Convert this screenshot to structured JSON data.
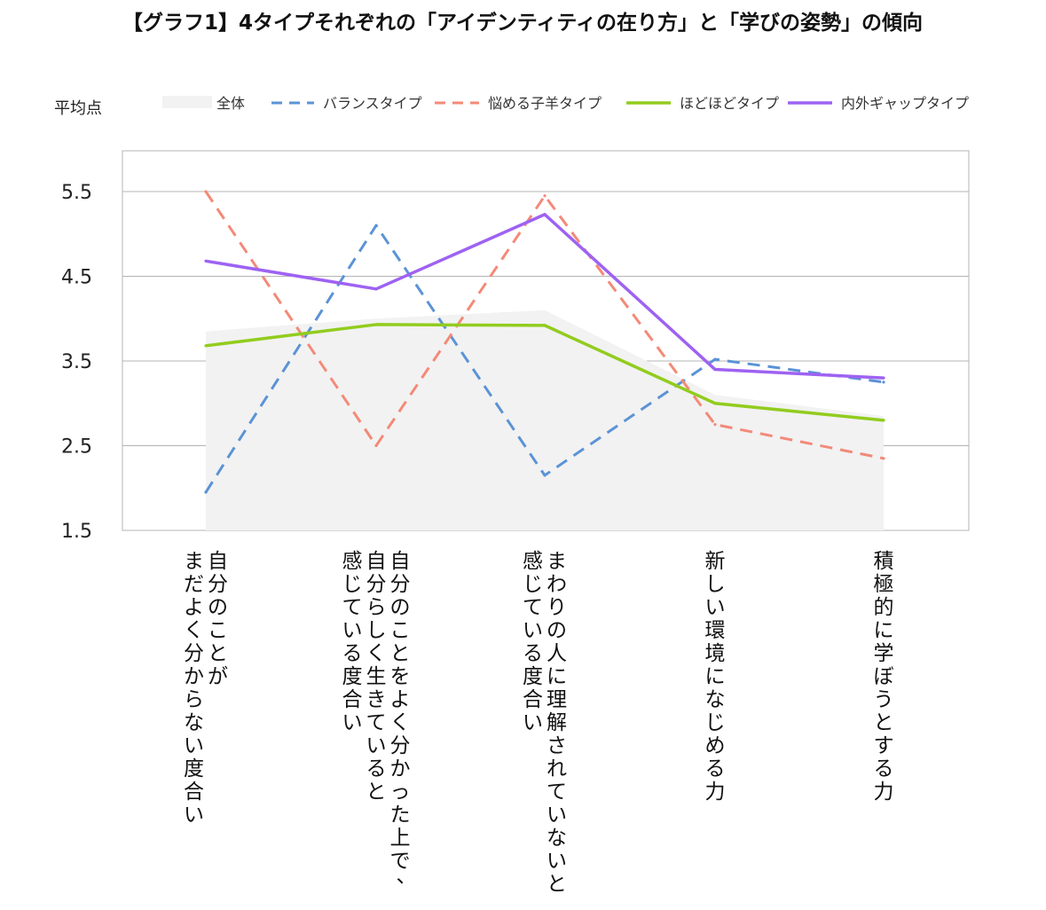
{
  "chart_data": {
    "type": "line",
    "title": "【グラフ1】4タイプそれぞれの「アイデンティティの在り方」と「学びの姿勢」の傾向",
    "ylabel": "平均点",
    "xlabel": "",
    "ylim": [
      1.5,
      6.0
    ],
    "yticks": [
      1.5,
      2.5,
      3.5,
      4.5,
      5.5
    ],
    "ytick_labels": [
      "1.5",
      "2.5",
      "3.5",
      "4.5",
      "5.5"
    ],
    "grid": true,
    "legend_position": "top",
    "categories": [
      [
        "自分のことが",
        "まだよく分からない度合い"
      ],
      [
        "自分のことをよく分かった上で、",
        "自分らしく生きていると",
        "感じている度合い"
      ],
      [
        "まわりの人に理解されていないと",
        "感じている度合い"
      ],
      [
        "新しい環境になじめる力"
      ],
      [
        "積極的に学ぼうとする力"
      ]
    ],
    "series": [
      {
        "name": "全体",
        "kind": "area",
        "color": "#f2f2f2",
        "values": [
          3.85,
          4.0,
          4.1,
          3.1,
          2.85
        ]
      },
      {
        "name": "バランスタイプ",
        "kind": "dashed",
        "color": "#5b93d6",
        "values": [
          1.95,
          5.1,
          2.15,
          3.52,
          3.25
        ]
      },
      {
        "name": "悩める子羊タイプ",
        "kind": "dashed",
        "color": "#f38a78",
        "values": [
          5.5,
          2.5,
          5.45,
          2.75,
          2.35
        ]
      },
      {
        "name": "ほどほどタイプ",
        "kind": "solid",
        "color": "#92cc1e",
        "values": [
          3.68,
          3.93,
          3.92,
          3.0,
          2.8
        ]
      },
      {
        "name": "内外ギャップタイプ",
        "kind": "solid",
        "color": "#9e62f2",
        "values": [
          4.68,
          4.35,
          5.23,
          3.4,
          3.3
        ]
      }
    ]
  }
}
